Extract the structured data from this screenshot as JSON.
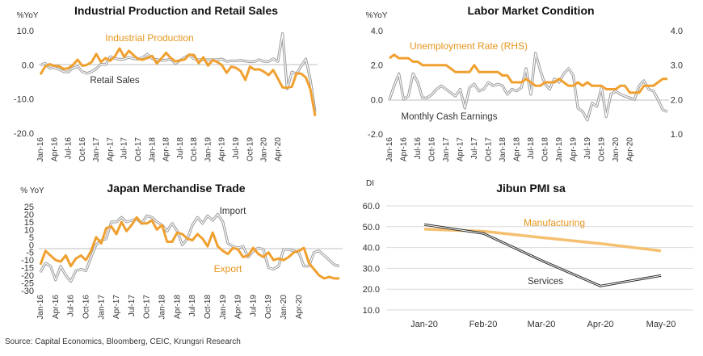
{
  "colors": {
    "orange": "#F0A030",
    "gray": "#8C8C8C",
    "dark": "#2B2B2B",
    "light_orange": "#F5C070",
    "axis": "#BFBFBF"
  },
  "source": "Source: Capital Economics, Bloomberg, CEIC, Krungsri Research",
  "chart_data": [
    {
      "type": "line",
      "title": "Industrial Production and Retail Sales",
      "unit": "%YoY",
      "ylim": [
        -20,
        10
      ],
      "y_ticks": [
        "10.0",
        "0.0",
        "-10.0",
        "-20.0"
      ],
      "x_tick_labels": [
        "Jan-16",
        "Apr-16",
        "Jul-16",
        "Oct-16",
        "Jan-17",
        "Apr-17",
        "Jul-17",
        "Oct-17",
        "Jan-18",
        "Apr-18",
        "Jul-18",
        "Oct-18",
        "Jan-19",
        "Apr-19",
        "Jul-19",
        "Oct-19",
        "Jan-20",
        "Apr-20"
      ],
      "x_start": "Jan-16",
      "frequency": "monthly",
      "series": [
        {
          "name": "Industrial Production",
          "color": "orange",
          "values": [
            -2.8,
            -0.5,
            0.2,
            -0.3,
            -0.4,
            -1.2,
            -1.0,
            0.0,
            1.5,
            -0.3,
            0.0,
            0.8,
            3.2,
            0.8,
            2.0,
            1.2,
            2.5,
            4.8,
            2.3,
            4.1,
            2.8,
            1.7,
            1.5,
            2.0,
            2.6,
            0.4,
            1.9,
            3.5,
            2.0,
            1.0,
            1.3,
            1.6,
            3.0,
            2.9,
            0.5,
            2.2,
            -0.2,
            1.4,
            0.8,
            -0.1,
            -2.3,
            -0.5,
            -0.9,
            -1.8,
            -4.4,
            -0.5,
            -1.4,
            -1.3,
            -2.0,
            -3.0,
            -1.5,
            -4.0,
            -6.6,
            -6.7,
            -6.4,
            -2.5,
            -2.6,
            -3.7,
            -7.2,
            -15.0
          ]
        },
        {
          "name": "Retail Sales",
          "color": "gray",
          "values": [
            -0.1,
            0.5,
            -1.0,
            -0.8,
            -1.3,
            -2.0,
            -2.1,
            -0.9,
            -0.5,
            -2.0,
            -2.5,
            -2.0,
            -1.1,
            0.2,
            0.1,
            2.4,
            1.9,
            1.6,
            1.7,
            2.2,
            1.8,
            1.7,
            2.2,
            3.1,
            1.8,
            1.6,
            1.3,
            1.4,
            1.7,
            0.4,
            1.3,
            2.2,
            2.9,
            1.7,
            1.5,
            1.5,
            1.5,
            1.5,
            1.5,
            1.7,
            1.0,
            1.2,
            1.2,
            1.3,
            1.1,
            0.9,
            1.0,
            1.5,
            1.0,
            1.0,
            1.8,
            1.0,
            9.2,
            -7.0,
            -2.1,
            -2.6,
            -0.4,
            1.7,
            -4.6,
            -13.7
          ]
        }
      ]
    },
    {
      "type": "line",
      "title": "Labor Market Condition",
      "unit": "%YoY",
      "ylim": [
        -2,
        4
      ],
      "y_ticks": [
        "4.0",
        "2.0",
        "0.0",
        "-2.0"
      ],
      "y2lim": [
        1.0,
        4.0
      ],
      "y2_ticks": [
        "4.0",
        "3.0",
        "2.0",
        "1.0"
      ],
      "x_tick_labels": [
        "Jan-16",
        "Apr-16",
        "Jul-16",
        "Oct-16",
        "Jan-17",
        "Apr-17",
        "Jul-17",
        "Oct-17",
        "Jan-18",
        "Apr-18",
        "Jul-18",
        "Oct-18",
        "Jan-19",
        "Apr-19",
        "Jul-19",
        "Oct-19",
        "Jan-20",
        "Apr-20"
      ],
      "x_start": "Jan-16",
      "frequency": "monthly",
      "series": [
        {
          "name": "Unemployment Rate (RHS)",
          "axis": "right",
          "color": "orange",
          "values": [
            3.2,
            3.3,
            3.2,
            3.2,
            3.2,
            3.1,
            3.1,
            3.0,
            3.0,
            3.0,
            3.0,
            3.0,
            3.0,
            2.9,
            2.8,
            2.8,
            2.8,
            2.8,
            3.0,
            2.8,
            2.8,
            2.8,
            2.8,
            2.8,
            2.7,
            2.7,
            2.5,
            2.5,
            2.5,
            2.6,
            2.5,
            2.4,
            2.4,
            2.5,
            2.5,
            2.5,
            2.6,
            2.5,
            2.4,
            2.4,
            2.5,
            2.4,
            2.5,
            2.4,
            2.4,
            2.4,
            2.3,
            2.3,
            2.3,
            2.4,
            2.4,
            2.2,
            2.2,
            2.2,
            2.4,
            2.4,
            2.4,
            2.5,
            2.6,
            2.6
          ]
        },
        {
          "name": "Monthly Cash Earnings",
          "axis": "left",
          "color": "gray",
          "values": [
            0.0,
            0.8,
            1.5,
            0.0,
            0.2,
            1.5,
            1.0,
            0.1,
            0.1,
            0.3,
            0.6,
            0.8,
            0.6,
            0.4,
            0.2,
            0.6,
            -0.5,
            0.7,
            0.9,
            0.5,
            0.6,
            1.0,
            0.8,
            0.9,
            0.8,
            0.3,
            0.6,
            0.5,
            0.7,
            1.8,
            0.3,
            2.7,
            1.7,
            0.9,
            0.6,
            1.2,
            1.0,
            1.5,
            1.8,
            1.4,
            -0.5,
            -0.7,
            -1.2,
            -0.2,
            -0.4,
            0.7,
            -1.0,
            0.3,
            0.5,
            0.3,
            0.2,
            0.1,
            0.0,
            0.8,
            1.1,
            0.6,
            0.5,
            0.0,
            -0.6,
            -0.7
          ]
        }
      ]
    },
    {
      "type": "line",
      "title": "Japan Merchandise Trade",
      "unit": "% YoY",
      "ylim": [
        -30,
        25
      ],
      "y_ticks": [
        "25",
        "20",
        "15",
        "10",
        "5",
        "0",
        "-5",
        "-10",
        "-15",
        "-20",
        "-25",
        "-30"
      ],
      "x_tick_labels": [
        "Jan-16",
        "Apr-16",
        "Jul-16",
        "Oct-16",
        "Jan-17",
        "Apr-17",
        "Jul-17",
        "Oct-17",
        "Jan-18",
        "Apr-18",
        "Jul-18",
        "Oct-18",
        "Jan-19",
        "Apr-19",
        "Jul-19",
        "Oct-19",
        "Jan-20",
        "Apr-20"
      ],
      "x_start": "Jan-16",
      "frequency": "monthly",
      "series": [
        {
          "name": "Export",
          "color": "orange",
          "values": [
            -13,
            -4,
            -7,
            -10,
            -11,
            -7,
            -14,
            -9,
            -7,
            -10,
            -4,
            5,
            1,
            11,
            12,
            7,
            15,
            9,
            13,
            18,
            14,
            14,
            16,
            10,
            13,
            2,
            2,
            8,
            7,
            4,
            3,
            7,
            4,
            -1,
            8,
            -1,
            -4,
            -6,
            -2,
            -3,
            -8,
            -7,
            -2,
            -6,
            -8,
            -5,
            -10,
            -9,
            -10,
            -8,
            -5,
            -4,
            -2,
            -12,
            -16,
            -20,
            -22,
            -21,
            -22,
            -22
          ]
        },
        {
          "name": "Import",
          "color": "gray",
          "values": [
            -18,
            -12,
            -14,
            -23,
            -14,
            -20,
            -24,
            -17,
            -16,
            -17,
            -8,
            0,
            3,
            4,
            15,
            15,
            18,
            15,
            16,
            17,
            14,
            19,
            18,
            15,
            13,
            9,
            14,
            9,
            0,
            4,
            13,
            18,
            14,
            19,
            16,
            20,
            15,
            1,
            -1,
            -2,
            -1,
            -8,
            -4,
            -2,
            -3,
            -15,
            -16,
            -14,
            -3,
            -3,
            -4,
            -5,
            -14,
            -14,
            -5,
            -4,
            -7,
            -10,
            -13,
            -14
          ]
        }
      ]
    },
    {
      "type": "line",
      "title": "Jibun PMI sa",
      "unit": "DI",
      "ylim": [
        10,
        60
      ],
      "y_ticks": [
        "60.0",
        "50.0",
        "40.0",
        "30.0",
        "20.0",
        "10.0"
      ],
      "categories": [
        "Jan-20",
        "Feb-20",
        "Mar-20",
        "Apr-20",
        "May-20"
      ],
      "series": [
        {
          "name": "Manufacturing",
          "color": "light_orange",
          "values": [
            48.8,
            47.8,
            44.8,
            41.9,
            38.4
          ]
        },
        {
          "name": "Services",
          "color": "dark",
          "values": [
            51.0,
            46.8,
            33.8,
            21.5,
            26.5
          ]
        }
      ]
    }
  ]
}
